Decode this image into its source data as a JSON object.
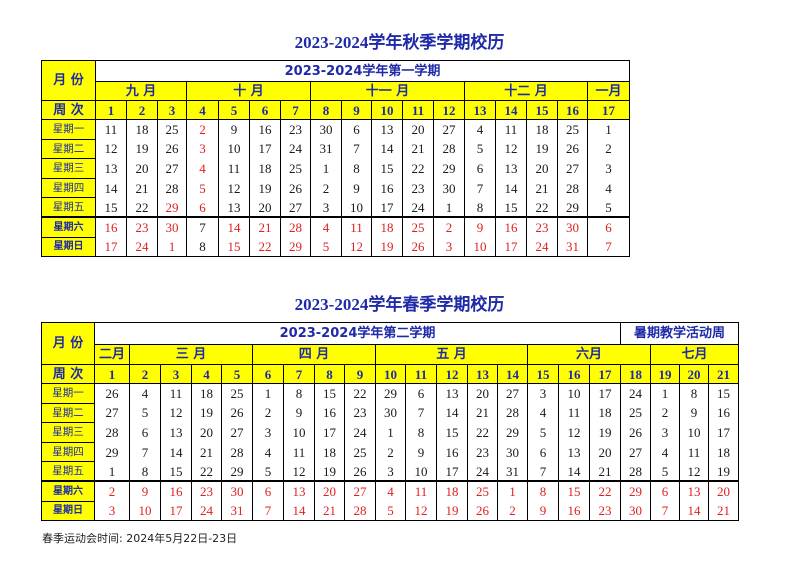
{
  "autumn": {
    "title": "2023-2024学年秋季学期校历",
    "month_label": "月 份",
    "semester": "2023-2024学年第一学期",
    "week_label": "周 次",
    "months": [
      {
        "label": "九 月",
        "span": 3
      },
      {
        "label": "十 月",
        "span": 4
      },
      {
        "label": "十一 月",
        "span": 5
      },
      {
        "label": "十二 月",
        "span": 4
      },
      {
        "label": "一月",
        "span": 1
      }
    ],
    "weeks": [
      "1",
      "2",
      "3",
      "4",
      "5",
      "6",
      "7",
      "8",
      "9",
      "10",
      "11",
      "12",
      "13",
      "14",
      "15",
      "16",
      "17"
    ],
    "days": [
      {
        "label": "星期一",
        "dates": [
          11,
          18,
          25,
          2,
          9,
          16,
          23,
          30,
          6,
          13,
          20,
          27,
          4,
          11,
          18,
          25,
          1
        ],
        "red": [
          3
        ]
      },
      {
        "label": "星期二",
        "dates": [
          12,
          19,
          26,
          3,
          10,
          17,
          24,
          31,
          7,
          14,
          21,
          28,
          5,
          12,
          19,
          26,
          2
        ],
        "red": [
          3
        ]
      },
      {
        "label": "星期三",
        "dates": [
          13,
          20,
          27,
          4,
          11,
          18,
          25,
          1,
          8,
          15,
          22,
          29,
          6,
          13,
          20,
          27,
          3
        ],
        "red": [
          3
        ]
      },
      {
        "label": "星期四",
        "dates": [
          14,
          21,
          28,
          5,
          12,
          19,
          26,
          2,
          9,
          16,
          23,
          30,
          7,
          14,
          21,
          28,
          4
        ],
        "red": [
          3
        ]
      },
      {
        "label": "星期五",
        "dates": [
          15,
          22,
          29,
          6,
          13,
          20,
          27,
          3,
          10,
          17,
          24,
          1,
          8,
          15,
          22,
          29,
          5
        ],
        "red": [
          2,
          3
        ]
      },
      {
        "label": "星期六",
        "dates": [
          16,
          23,
          30,
          7,
          14,
          21,
          28,
          4,
          11,
          18,
          25,
          2,
          9,
          16,
          23,
          30,
          6
        ],
        "red": [
          0,
          1,
          2,
          4,
          5,
          6,
          7,
          8,
          9,
          10,
          11,
          12,
          13,
          14,
          15,
          16
        ],
        "bold": true
      },
      {
        "label": "星期日",
        "dates": [
          17,
          24,
          1,
          8,
          15,
          22,
          29,
          5,
          12,
          19,
          26,
          3,
          10,
          17,
          24,
          31,
          7
        ],
        "red": [
          0,
          1,
          2,
          4,
          5,
          6,
          7,
          8,
          9,
          10,
          11,
          12,
          13,
          14,
          15,
          16
        ],
        "bold": true
      }
    ]
  },
  "spring": {
    "title": "2023-2024学年春季学期校历",
    "month_label": "月 份",
    "semester": "2023-2024学年第二学期",
    "summer": "暑期教学活动周",
    "week_label": "周 次",
    "months": [
      {
        "label": "二月",
        "span": 1
      },
      {
        "label": "三 月",
        "span": 4
      },
      {
        "label": "四 月",
        "span": 4
      },
      {
        "label": "五 月",
        "span": 5
      },
      {
        "label": "六月",
        "span": 4
      },
      {
        "label": "七月",
        "span": 3
      }
    ],
    "weeks": [
      "1",
      "2",
      "3",
      "4",
      "5",
      "6",
      "7",
      "8",
      "9",
      "10",
      "11",
      "12",
      "13",
      "14",
      "15",
      "16",
      "17",
      "18",
      "19",
      "20",
      "21"
    ],
    "days": [
      {
        "label": "星期一",
        "dates": [
          26,
          4,
          11,
          18,
          25,
          1,
          8,
          15,
          22,
          29,
          6,
          13,
          20,
          27,
          3,
          10,
          17,
          24,
          1,
          8,
          15
        ],
        "red": []
      },
      {
        "label": "星期二",
        "dates": [
          27,
          5,
          12,
          19,
          26,
          2,
          9,
          16,
          23,
          30,
          7,
          14,
          21,
          28,
          4,
          11,
          18,
          25,
          2,
          9,
          16
        ],
        "red": []
      },
      {
        "label": "星期三",
        "dates": [
          28,
          6,
          13,
          20,
          27,
          3,
          10,
          17,
          24,
          1,
          8,
          15,
          22,
          29,
          5,
          12,
          19,
          26,
          3,
          10,
          17
        ],
        "red": []
      },
      {
        "label": "星期四",
        "dates": [
          29,
          7,
          14,
          21,
          28,
          4,
          11,
          18,
          25,
          2,
          9,
          16,
          23,
          30,
          6,
          13,
          20,
          27,
          4,
          11,
          18
        ],
        "red": []
      },
      {
        "label": "星期五",
        "dates": [
          1,
          8,
          15,
          22,
          29,
          5,
          12,
          19,
          26,
          3,
          10,
          17,
          24,
          31,
          7,
          14,
          21,
          28,
          5,
          12,
          19
        ],
        "red": []
      },
      {
        "label": "星期六",
        "dates": [
          2,
          9,
          16,
          23,
          30,
          6,
          13,
          20,
          27,
          4,
          11,
          18,
          25,
          1,
          8,
          15,
          22,
          29,
          6,
          13,
          20
        ],
        "red": [
          0,
          1,
          2,
          3,
          4,
          5,
          6,
          7,
          8,
          9,
          10,
          11,
          12,
          13,
          14,
          15,
          16,
          17,
          18,
          19,
          20
        ],
        "bold": true
      },
      {
        "label": "星期日",
        "dates": [
          3,
          10,
          17,
          24,
          31,
          7,
          14,
          21,
          28,
          5,
          12,
          19,
          26,
          2,
          9,
          16,
          23,
          30,
          7,
          14,
          21
        ],
        "red": [
          0,
          1,
          2,
          3,
          4,
          5,
          6,
          7,
          8,
          9,
          10,
          11,
          12,
          13,
          14,
          15,
          16,
          17,
          18,
          19,
          20
        ],
        "bold": true
      }
    ]
  },
  "note": "春季运动会时间: 2024年5月22日-23日"
}
